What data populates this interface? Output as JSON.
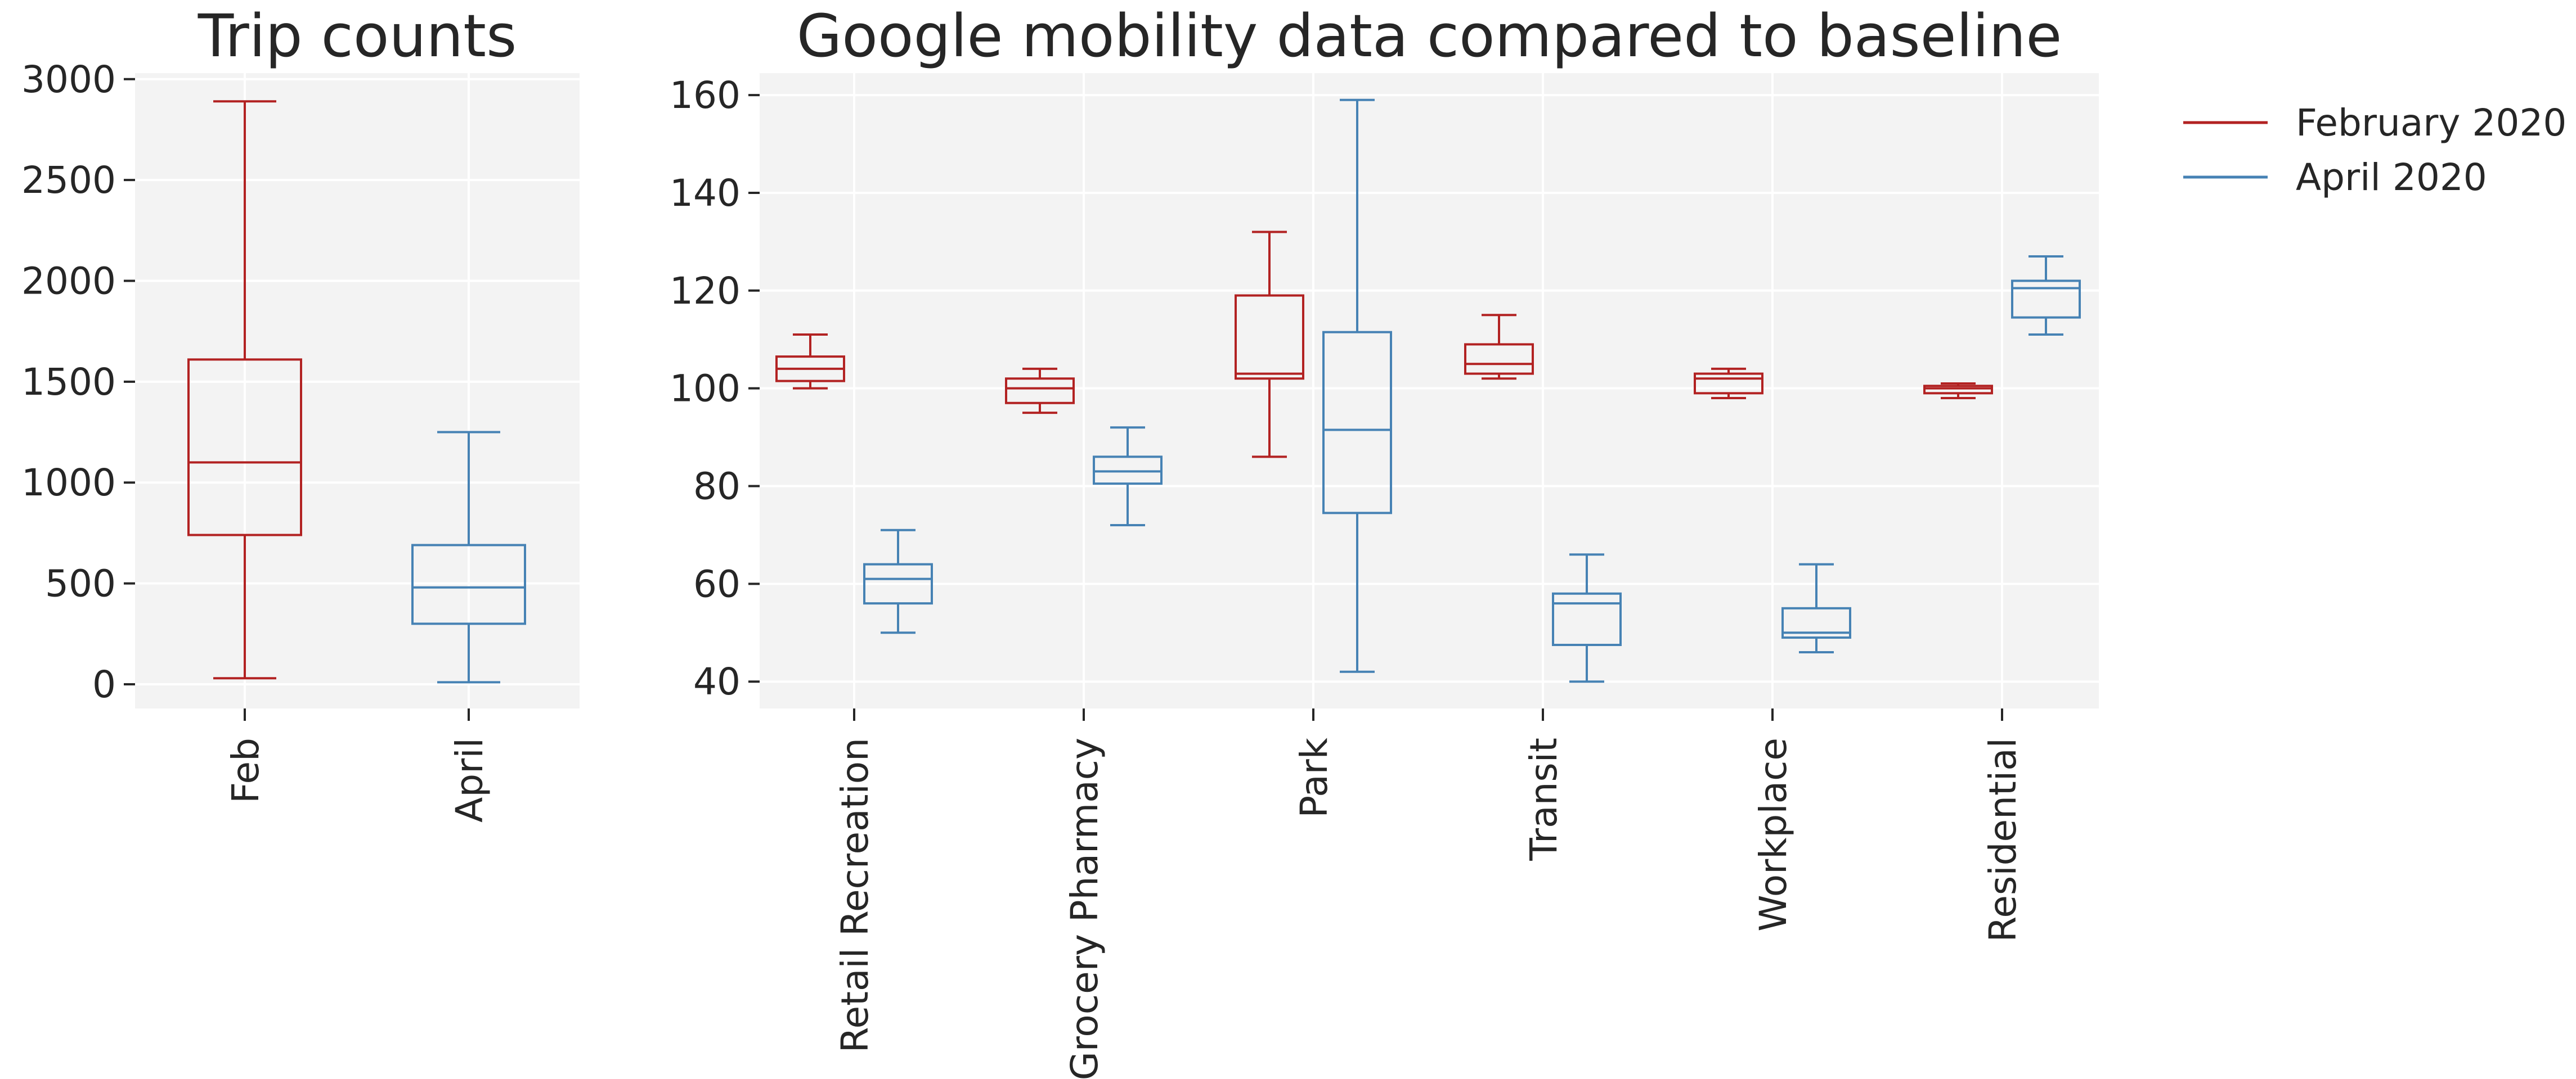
{
  "colors": {
    "february": "#b22222",
    "april": "#4682b4",
    "background": "#f3f3f3",
    "grid": "#ffffff",
    "text": "#262626"
  },
  "chart_data": [
    {
      "type": "box",
      "title": "Trip counts",
      "xlabel": "",
      "ylabel": "",
      "ylim": [
        -120,
        3030
      ],
      "yticks": [
        0,
        500,
        1000,
        1500,
        2000,
        2500,
        3000
      ],
      "grid": true,
      "categories": [
        "Feb",
        "April"
      ],
      "boxes": [
        {
          "category": "Feb",
          "color": "february",
          "whislo": 30,
          "q1": 740,
          "med": 1100,
          "q3": 1610,
          "whishi": 2890
        },
        {
          "category": "April",
          "color": "april",
          "whislo": 10,
          "q1": 300,
          "med": 480,
          "q3": 690,
          "whishi": 1250
        }
      ]
    },
    {
      "type": "box",
      "title": "Google mobility data compared to baseline",
      "xlabel": "",
      "ylabel": "",
      "ylim": [
        34.5,
        164.5
      ],
      "yticks": [
        40,
        60,
        80,
        100,
        120,
        140,
        160
      ],
      "grid": true,
      "categories": [
        "Retail Recreation",
        "Grocery Pharmacy",
        "Park",
        "Transit",
        "Workplace",
        "Residential"
      ],
      "legend": {
        "placement": "outside-top-right",
        "entries": [
          {
            "label": "February 2020",
            "color": "february"
          },
          {
            "label": "April 2020",
            "color": "april"
          }
        ]
      },
      "series": [
        {
          "name": "February 2020",
          "color": "february",
          "boxes": [
            {
              "category": "Retail Recreation",
              "whislo": 100,
              "q1": 101.5,
              "med": 104,
              "q3": 106.5,
              "whishi": 111
            },
            {
              "category": "Grocery Pharmacy",
              "whislo": 95,
              "q1": 97,
              "med": 100,
              "q3": 102,
              "whishi": 104
            },
            {
              "category": "Park",
              "whislo": 86,
              "q1": 102,
              "med": 103,
              "q3": 119,
              "whishi": 132
            },
            {
              "category": "Transit",
              "whislo": 102,
              "q1": 103,
              "med": 105,
              "q3": 109,
              "whishi": 115
            },
            {
              "category": "Workplace",
              "whislo": 98,
              "q1": 99,
              "med": 102,
              "q3": 103,
              "whishi": 104
            },
            {
              "category": "Residential",
              "whislo": 98,
              "q1": 99,
              "med": 100,
              "q3": 100.5,
              "whishi": 101
            }
          ]
        },
        {
          "name": "April 2020",
          "color": "april",
          "boxes": [
            {
              "category": "Retail Recreation",
              "whislo": 50,
              "q1": 56,
              "med": 61,
              "q3": 64,
              "whishi": 71
            },
            {
              "category": "Grocery Pharmacy",
              "whislo": 72,
              "q1": 80.5,
              "med": 83,
              "q3": 86,
              "whishi": 92
            },
            {
              "category": "Park",
              "whislo": 42,
              "q1": 74.5,
              "med": 91.5,
              "q3": 111.5,
              "whishi": 159
            },
            {
              "category": "Transit",
              "whislo": 40,
              "q1": 47.5,
              "med": 56,
              "q3": 58,
              "whishi": 66
            },
            {
              "category": "Workplace",
              "whislo": 46,
              "q1": 49,
              "med": 50,
              "q3": 55,
              "whishi": 64
            },
            {
              "category": "Residential",
              "whislo": 111,
              "q1": 114.5,
              "med": 120.5,
              "q3": 122,
              "whishi": 127
            }
          ]
        }
      ]
    }
  ]
}
